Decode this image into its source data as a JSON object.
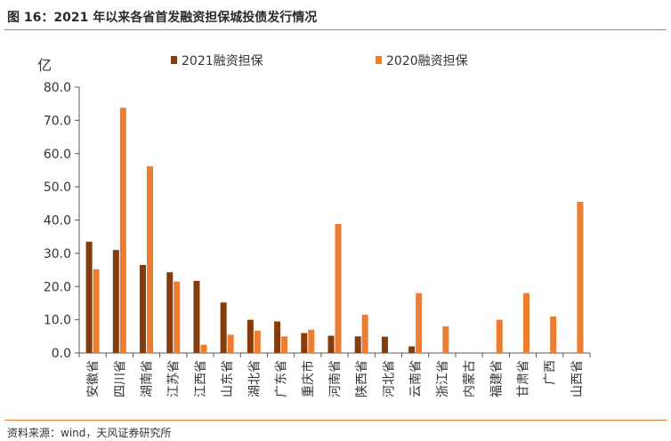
{
  "figure": {
    "title": "图 16：2021 年以来各省首发融资担保城投债发行情况",
    "source": "资料来源：wind，天风证券研究所"
  },
  "colors": {
    "series_2021": "#843c0c",
    "series_2020": "#ed7d31",
    "accent_rule": "#e07a2e",
    "axis": "#595959",
    "text": "#333333"
  },
  "chart_data": {
    "type": "bar",
    "title": "",
    "xlabel": "",
    "ylabel": "亿",
    "ylim": [
      0,
      80
    ],
    "yticks": [
      "0.0",
      "10.0",
      "20.0",
      "30.0",
      "40.0",
      "50.0",
      "60.0",
      "70.0",
      "80.0"
    ],
    "grid": false,
    "legend_position": "top",
    "categories": [
      "安徽省",
      "四川省",
      "湖南省",
      "江苏省",
      "江西省",
      "山东省",
      "湖北省",
      "广东省",
      "重庆市",
      "河南省",
      "陕西省",
      "河北省",
      "云南省",
      "浙江省",
      "内蒙古",
      "福建省",
      "甘肃省",
      "广西",
      "山西省"
    ],
    "series": [
      {
        "name": "2021融资担保",
        "values": [
          33.5,
          31,
          26.5,
          24.3,
          21.7,
          15.2,
          10,
          9.5,
          6,
          5.2,
          5,
          4.9,
          2,
          0,
          0,
          0,
          0,
          0,
          0
        ]
      },
      {
        "name": "2020融资担保",
        "values": [
          25.2,
          73.8,
          56.2,
          21.5,
          2.5,
          5.5,
          6.7,
          5,
          7,
          38.8,
          11.5,
          0,
          18,
          8,
          0,
          10,
          18,
          11,
          45.5
        ]
      }
    ]
  }
}
